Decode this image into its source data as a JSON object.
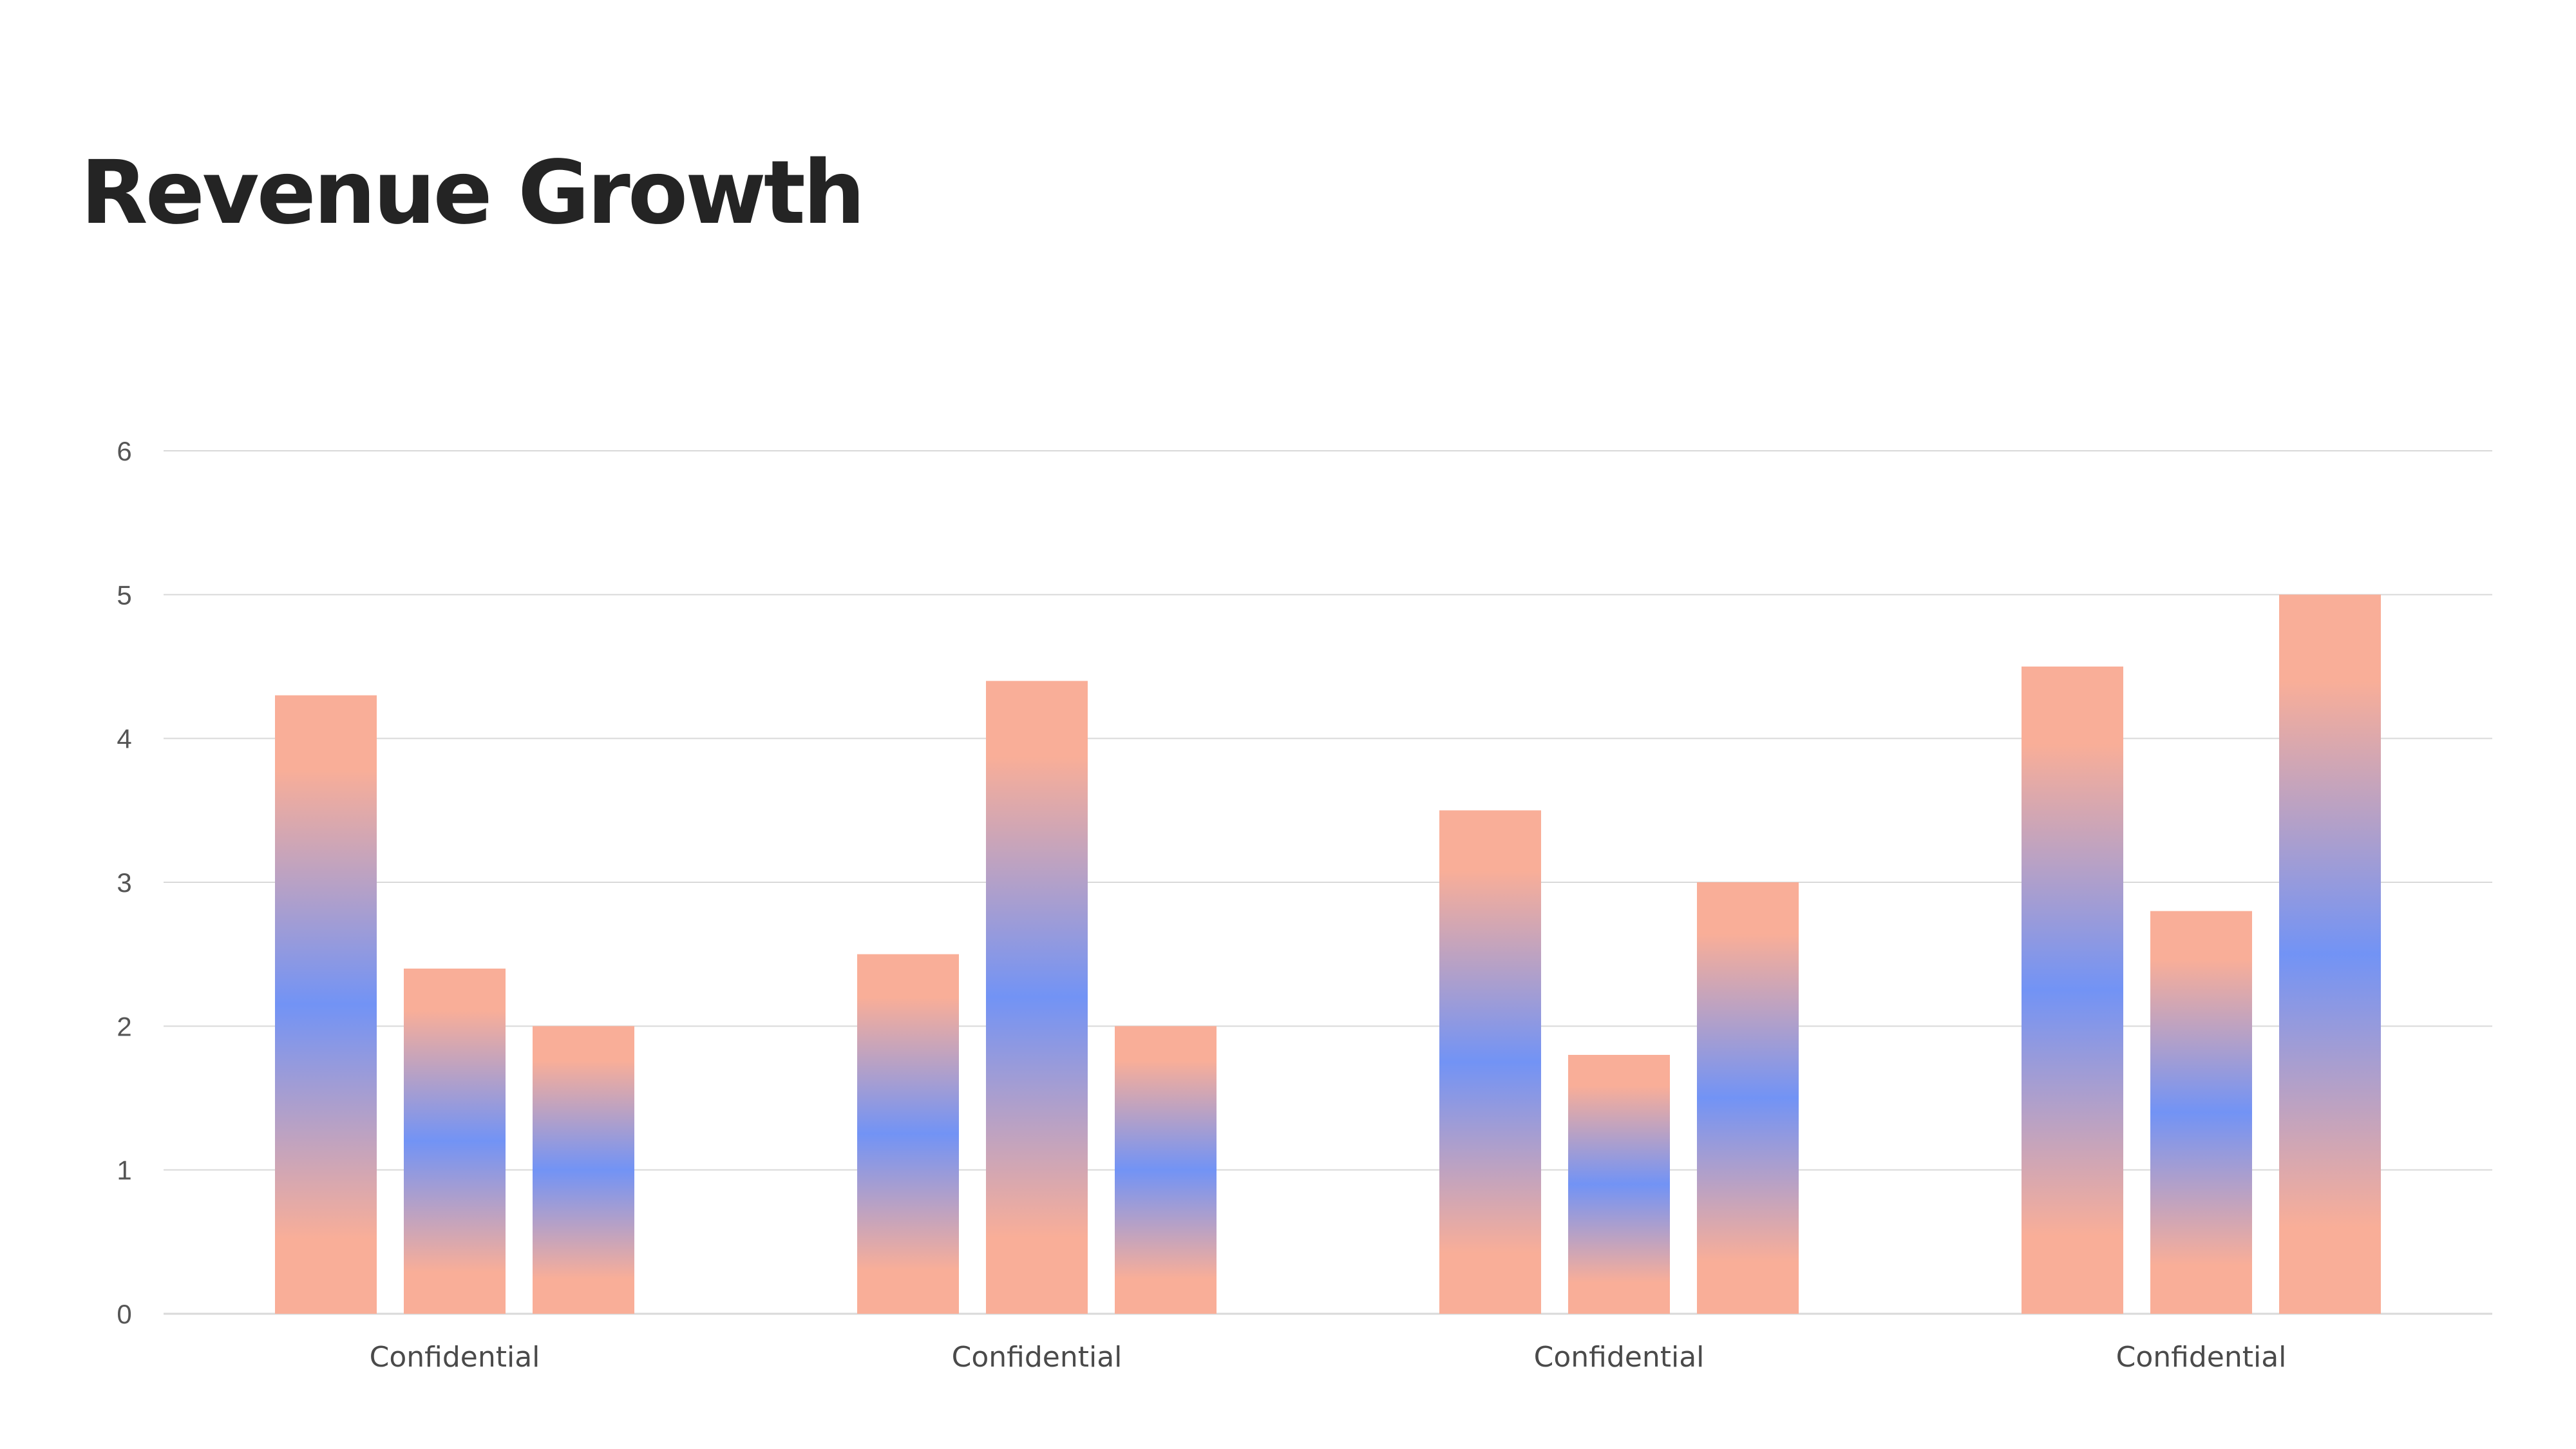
{
  "title": "Revenue Growth",
  "colors": {
    "bar_edge": "#F9AE98",
    "bar_core": "#7293F5",
    "grid": "#D9D9D9",
    "axis_text": "#555555",
    "title": "#242424"
  },
  "chart_data": {
    "type": "bar",
    "title": "Revenue Growth",
    "xlabel": "",
    "ylabel": "",
    "categories": [
      "Confidential",
      "Confidential",
      "Confidential",
      "Confidential"
    ],
    "series": [
      {
        "values": [
          4.3,
          2.5,
          3.5,
          4.5
        ]
      },
      {
        "values": [
          2.4,
          4.4,
          1.8,
          2.8
        ]
      },
      {
        "values": [
          2.0,
          2.0,
          3.0,
          5.0
        ]
      }
    ],
    "ylim": [
      0,
      6
    ],
    "yticks": [
      0,
      1,
      2,
      3,
      4,
      5,
      6
    ],
    "grid": true,
    "legend": "none"
  }
}
